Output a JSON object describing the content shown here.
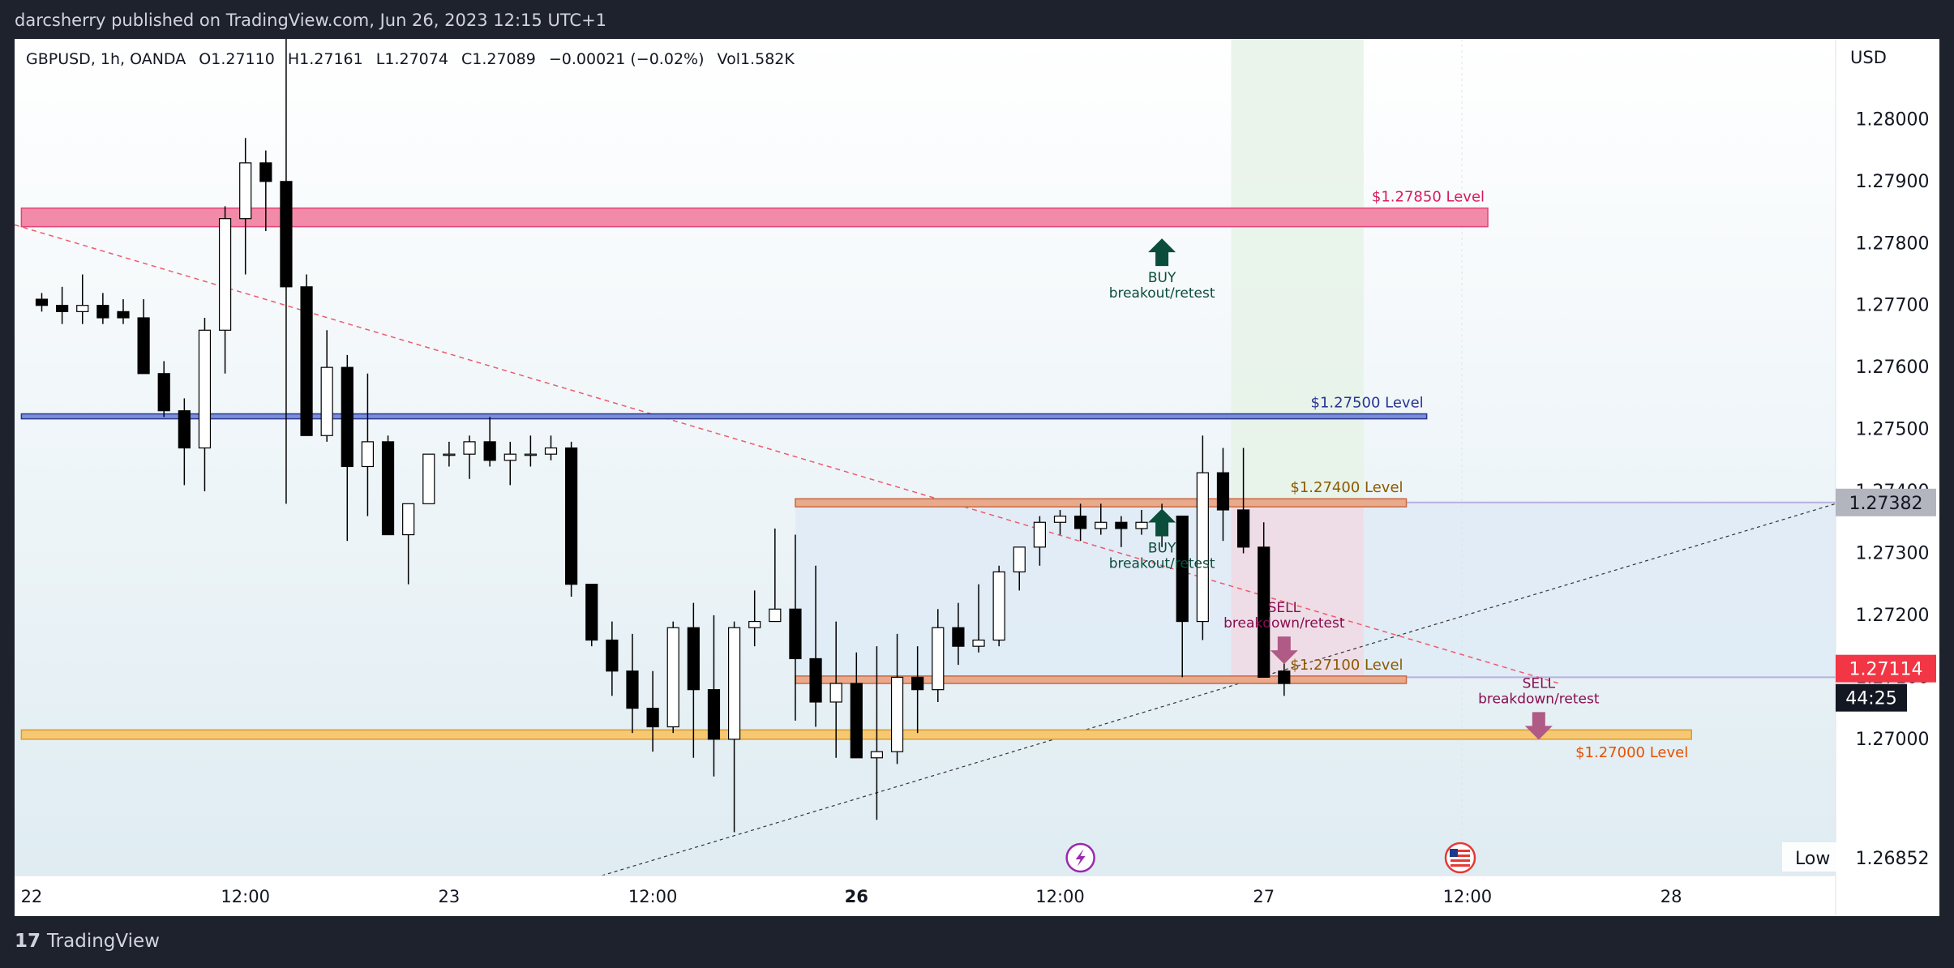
{
  "header": {
    "published_by": "darcsherry published on TradingView.com, Jun 26, 2023 12:15 UTC+1"
  },
  "footer": {
    "brand": "TradingView",
    "brand_icon": "tradingview-logo-icon"
  },
  "legend": {
    "symbol": "GBPUSD, 1h, OANDA",
    "open": "O1.27110",
    "high": "H1.27161",
    "low": "L1.27074",
    "close": "C1.27089",
    "change": "−0.00021 (−0.02%)",
    "volume": "Vol1.582K"
  },
  "chart_data": {
    "type": "candlestick",
    "currency": "USD",
    "ylim": [
      1.2678,
      1.2813
    ],
    "y_ticks": [
      "1.27000",
      "1.27100",
      "1.27200",
      "1.27300",
      "1.27400",
      "1.27500",
      "1.27600",
      "1.27700",
      "1.27800",
      "1.27900",
      "1.28000"
    ],
    "x_ticks": [
      {
        "label": "22",
        "i": -0.5,
        "bold": false
      },
      {
        "label": "12:00",
        "i": 10,
        "bold": false
      },
      {
        "label": "23",
        "i": 20,
        "bold": false
      },
      {
        "label": "12:00",
        "i": 30,
        "bold": false
      },
      {
        "label": "26",
        "i": 40,
        "bold": true
      },
      {
        "label": "12:00",
        "i": 50,
        "bold": false
      },
      {
        "label": "27",
        "i": 60,
        "bold": false
      },
      {
        "label": "12:00",
        "i": 70,
        "bold": false
      },
      {
        "label": "28",
        "i": 80,
        "bold": false
      }
    ],
    "candles": [
      {
        "o": 1.2771,
        "h": 1.2772,
        "l": 1.2769,
        "c": 1.277
      },
      {
        "o": 1.277,
        "h": 1.2773,
        "l": 1.2767,
        "c": 1.2769
      },
      {
        "o": 1.2769,
        "h": 1.2775,
        "l": 1.2767,
        "c": 1.277
      },
      {
        "o": 1.277,
        "h": 1.2772,
        "l": 1.2767,
        "c": 1.2768
      },
      {
        "o": 1.2769,
        "h": 1.2771,
        "l": 1.2767,
        "c": 1.2768
      },
      {
        "o": 1.2768,
        "h": 1.2771,
        "l": 1.2759,
        "c": 1.2759
      },
      {
        "o": 1.2759,
        "h": 1.2761,
        "l": 1.2752,
        "c": 1.2753
      },
      {
        "o": 1.2753,
        "h": 1.2755,
        "l": 1.2741,
        "c": 1.2747
      },
      {
        "o": 1.2747,
        "h": 1.2768,
        "l": 1.274,
        "c": 1.2766
      },
      {
        "o": 1.2766,
        "h": 1.2786,
        "l": 1.2759,
        "c": 1.2784
      },
      {
        "o": 1.2784,
        "h": 1.2797,
        "l": 1.2775,
        "c": 1.2793
      },
      {
        "o": 1.2793,
        "h": 1.2795,
        "l": 1.2782,
        "c": 1.279
      },
      {
        "o": 1.279,
        "h": 1.283,
        "l": 1.2738,
        "c": 1.2773
      },
      {
        "o": 1.2773,
        "h": 1.2775,
        "l": 1.2749,
        "c": 1.2749
      },
      {
        "o": 1.2749,
        "h": 1.2766,
        "l": 1.2748,
        "c": 1.276
      },
      {
        "o": 1.276,
        "h": 1.2762,
        "l": 1.2732,
        "c": 1.2744
      },
      {
        "o": 1.2744,
        "h": 1.2759,
        "l": 1.2736,
        "c": 1.2748
      },
      {
        "o": 1.2748,
        "h": 1.2749,
        "l": 1.2733,
        "c": 1.2733
      },
      {
        "o": 1.2733,
        "h": 1.2738,
        "l": 1.2725,
        "c": 1.2738
      },
      {
        "o": 1.2738,
        "h": 1.2746,
        "l": 1.2738,
        "c": 1.2746
      },
      {
        "o": 1.2746,
        "h": 1.2748,
        "l": 1.2744,
        "c": 1.2746
      },
      {
        "o": 1.2746,
        "h": 1.2749,
        "l": 1.2742,
        "c": 1.2748
      },
      {
        "o": 1.2748,
        "h": 1.2752,
        "l": 1.2744,
        "c": 1.2745
      },
      {
        "o": 1.2745,
        "h": 1.2748,
        "l": 1.2741,
        "c": 1.2746
      },
      {
        "o": 1.2746,
        "h": 1.2749,
        "l": 1.2744,
        "c": 1.2746
      },
      {
        "o": 1.2746,
        "h": 1.2749,
        "l": 1.2745,
        "c": 1.2747
      },
      {
        "o": 1.2747,
        "h": 1.2748,
        "l": 1.2723,
        "c": 1.2725
      },
      {
        "o": 1.2725,
        "h": 1.2725,
        "l": 1.2715,
        "c": 1.2716
      },
      {
        "o": 1.2716,
        "h": 1.2719,
        "l": 1.2707,
        "c": 1.2711
      },
      {
        "o": 1.2711,
        "h": 1.2717,
        "l": 1.2701,
        "c": 1.2705
      },
      {
        "o": 1.2705,
        "h": 1.2711,
        "l": 1.2698,
        "c": 1.2702
      },
      {
        "o": 1.2702,
        "h": 1.2719,
        "l": 1.2701,
        "c": 1.2718
      },
      {
        "o": 1.2718,
        "h": 1.2722,
        "l": 1.2697,
        "c": 1.2708
      },
      {
        "o": 1.2708,
        "h": 1.272,
        "l": 1.2694,
        "c": 1.27
      },
      {
        "o": 1.27,
        "h": 1.2719,
        "l": 1.2685,
        "c": 1.2718
      },
      {
        "o": 1.2718,
        "h": 1.2724,
        "l": 1.2715,
        "c": 1.2719
      },
      {
        "o": 1.2719,
        "h": 1.2734,
        "l": 1.2719,
        "c": 1.2721
      },
      {
        "o": 1.2721,
        "h": 1.2733,
        "l": 1.2703,
        "c": 1.2713
      },
      {
        "o": 1.2713,
        "h": 1.2728,
        "l": 1.2702,
        "c": 1.2706
      },
      {
        "o": 1.2706,
        "h": 1.2719,
        "l": 1.2697,
        "c": 1.2709
      },
      {
        "o": 1.2709,
        "h": 1.2714,
        "l": 1.2697,
        "c": 1.2697
      },
      {
        "o": 1.2697,
        "h": 1.2715,
        "l": 1.2687,
        "c": 1.2698
      },
      {
        "o": 1.2698,
        "h": 1.2717,
        "l": 1.2696,
        "c": 1.271
      },
      {
        "o": 1.271,
        "h": 1.2715,
        "l": 1.2701,
        "c": 1.2708
      },
      {
        "o": 1.2708,
        "h": 1.2721,
        "l": 1.2706,
        "c": 1.2718
      },
      {
        "o": 1.2718,
        "h": 1.2722,
        "l": 1.2712,
        "c": 1.2715
      },
      {
        "o": 1.2715,
        "h": 1.2725,
        "l": 1.2714,
        "c": 1.2716
      },
      {
        "o": 1.2716,
        "h": 1.2728,
        "l": 1.2715,
        "c": 1.2727
      },
      {
        "o": 1.2727,
        "h": 1.2731,
        "l": 1.2724,
        "c": 1.2731
      },
      {
        "o": 1.2731,
        "h": 1.2736,
        "l": 1.2728,
        "c": 1.2735
      },
      {
        "o": 1.2735,
        "h": 1.2737,
        "l": 1.2733,
        "c": 1.2736
      },
      {
        "o": 1.2736,
        "h": 1.2738,
        "l": 1.2732,
        "c": 1.2734
      },
      {
        "o": 1.2734,
        "h": 1.2738,
        "l": 1.2733,
        "c": 1.2735
      },
      {
        "o": 1.2735,
        "h": 1.2736,
        "l": 1.2731,
        "c": 1.2734
      },
      {
        "o": 1.2734,
        "h": 1.2737,
        "l": 1.2733,
        "c": 1.2735
      },
      {
        "o": 1.2735,
        "h": 1.2738,
        "l": 1.2731,
        "c": 1.2736
      },
      {
        "o": 1.2736,
        "h": 1.2736,
        "l": 1.271,
        "c": 1.2719
      },
      {
        "o": 1.2719,
        "h": 1.2749,
        "l": 1.2716,
        "c": 1.2743
      },
      {
        "o": 1.2743,
        "h": 1.2747,
        "l": 1.2732,
        "c": 1.2737
      },
      {
        "o": 1.2737,
        "h": 1.2747,
        "l": 1.273,
        "c": 1.2731
      },
      {
        "o": 1.2731,
        "h": 1.2735,
        "l": 1.271,
        "c": 1.271
      },
      {
        "o": 1.2711,
        "h": 1.2716,
        "l": 1.2707,
        "c": 1.2709
      }
    ],
    "annotations": {
      "red_zone": {
        "label": "$1.27850 Level",
        "y0": 1.27827,
        "y1": 1.27857,
        "i0": -1,
        "i1": 71,
        "fill": "#f28ba8",
        "stroke": "#e0457a",
        "text_color": "#d81b60"
      },
      "blue_line": {
        "label": "$1.27500 Level",
        "y0": 1.27517,
        "y1": 1.27525,
        "i0": -1,
        "i1": 68,
        "fill": "#7a8fd6",
        "stroke": "#283593",
        "text_color": "#283593"
      },
      "zone_1274": {
        "label": "$1.27400 Level",
        "y0": 1.27375,
        "y1": 1.27388,
        "i0": 37,
        "i1": 67,
        "fill": "#e8a98c",
        "stroke": "#c96a3f",
        "text_color": "#8b5a00"
      },
      "zone_1271": {
        "label": "$1.27100 Level",
        "y0": 1.2709,
        "y1": 1.27102,
        "i0": 37,
        "i1": 67,
        "fill": "#e8a98c",
        "stroke": "#c96a3f",
        "text_color": "#8b5a00"
      },
      "zone_1270": {
        "label": "$1.27000 Level",
        "y0": 1.27,
        "y1": 1.27015,
        "i0": -1,
        "i1": 81,
        "fill": "#f7c873",
        "stroke": "#d99b2c",
        "text_color": "#e65100"
      },
      "buy_top": {
        "line1": "BUY",
        "line2": "breakout/retest",
        "i": 55,
        "y": 1.27808,
        "color": "#0b4d3b"
      },
      "buy_mid": {
        "line1": "BUY",
        "line2": "breakout/retest",
        "i": 55,
        "y": 1.27372,
        "color": "#0b4d3b"
      },
      "sell_mid": {
        "line1": "SELL",
        "line2": "breakdown/retest",
        "i": 61,
        "y": 1.27205,
        "color": "#880e4f",
        "arrow_color": "#b05a86"
      },
      "sell_right": {
        "line1": "SELL",
        "line2": "breakdown/retest",
        "i": 73.5,
        "y": 1.27083,
        "color": "#880e4f",
        "arrow_color": "#b05a86"
      }
    },
    "price_badges": {
      "pos_price": {
        "value": "1.27382",
        "y": 1.27382,
        "color": "#b2b5be",
        "text": "#131722"
      },
      "last_price": {
        "value": "1.27114",
        "y": 1.27114,
        "color": "#f23645",
        "text": "#ffffff"
      },
      "countdown": {
        "value": "44:25"
      },
      "low": {
        "label": "Low",
        "value": "1.26852"
      }
    },
    "colors": {
      "bull": "#ffffff",
      "bear": "#000000",
      "wick": "#000000"
    }
  }
}
